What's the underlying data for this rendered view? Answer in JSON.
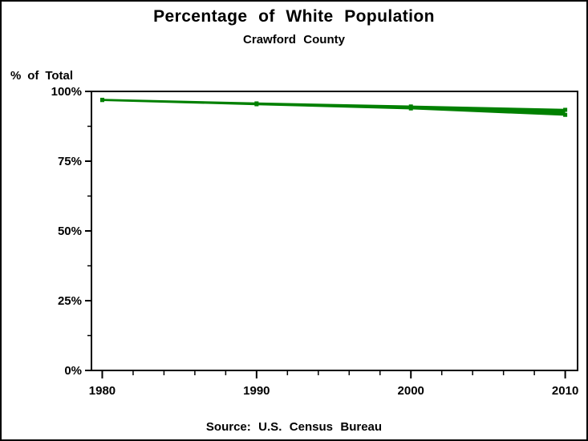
{
  "header": {
    "title": "Percentage of White Population",
    "subtitle": "Crawford County"
  },
  "footer": {
    "source": "Source: U.S. Census Bureau"
  },
  "chart_data": {
    "type": "line",
    "title": "Percentage of White Population",
    "subtitle": "Crawford County",
    "ylabel": "% of Total",
    "xlabel": "",
    "x": [
      1980,
      1990,
      2000,
      2010
    ],
    "x_tick_labels": [
      "1980",
      "1990",
      "2000",
      "2010"
    ],
    "series": [
      {
        "name": "white-population-upper",
        "values": [
          97.0,
          95.7,
          94.6,
          93.4
        ]
      },
      {
        "name": "white-population-lower",
        "values": [
          96.9,
          95.4,
          93.9,
          91.6
        ]
      }
    ],
    "band_between_series": true,
    "y_tick_values": [
      0,
      25,
      50,
      75,
      100
    ],
    "y_tick_labels": [
      "0%",
      "25%",
      "50%",
      "75%",
      "100%"
    ],
    "y_minor_tick_values": [
      12.5,
      37.5,
      62.5,
      87.5
    ],
    "x_minor_step_years": 2,
    "xlim": [
      1979.3,
      2010.8
    ],
    "ylim": [
      0,
      100
    ],
    "grid": false,
    "legend": "none",
    "line_color": "#008000",
    "axis_color": "#000000",
    "marker": "square",
    "source": "Source: U.S. Census Bureau"
  }
}
